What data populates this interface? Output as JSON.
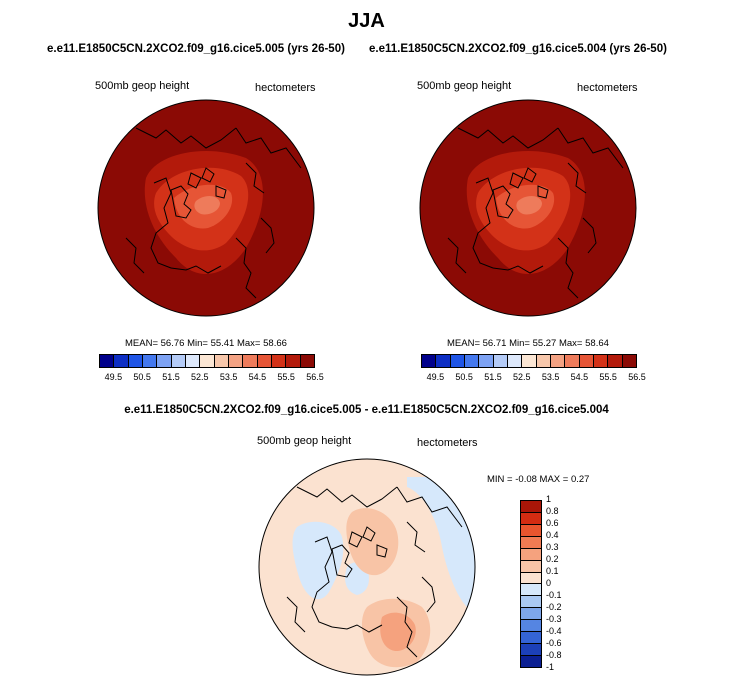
{
  "main_title": "JJA",
  "panels": [
    {
      "case_title": "e.e11.E1850C5CN.2XCO2.f09_g16.cice5.005 (yrs 26-50)",
      "variable": "500mb geop height",
      "units": "hectometers",
      "stats": {
        "mean_label": "MEAN=",
        "mean": "56.76",
        "min_label": "Min=",
        "min": "55.41",
        "max_label": "Max=",
        "max": "58.66"
      }
    },
    {
      "case_title": "e.e11.E1850C5CN.2XCO2.f09_g16.cice5.004 (yrs 26-50)",
      "variable": "500mb geop height",
      "units": "hectometers",
      "stats": {
        "mean_label": "MEAN=",
        "mean": "56.71",
        "min_label": "Min=",
        "min": "55.27",
        "max_label": "Max=",
        "max": "58.64"
      }
    }
  ],
  "abs_colorbar": {
    "colors": [
      "#00008b",
      "#0d2ec4",
      "#1f55e6",
      "#4478ee",
      "#7da2f3",
      "#b4cbf7",
      "#dde8fb",
      "#fbe6d4",
      "#f7c7ab",
      "#f3a283",
      "#ee7b5b",
      "#e65536",
      "#d33218",
      "#b31a0b",
      "#8b0a05"
    ],
    "tick_labels": [
      "49.5",
      "50.5",
      "51.5",
      "52.5",
      "53.5",
      "54.5",
      "55.5",
      "56.5"
    ]
  },
  "diff_panel": {
    "title": "e.e11.E1850C5CN.2XCO2.f09_g16.cice5.005 - e.e11.E1850C5CN.2XCO2.f09_g16.cice5.004",
    "variable": "500mb geop height",
    "units": "hectometers",
    "stats": {
      "min_label": "MIN =",
      "min": "-0.08",
      "max_label": "MAX =",
      "max": "0.27"
    }
  },
  "diff_colorbar": {
    "colors": [
      "#a81608",
      "#d32c12",
      "#e8552e",
      "#f07b53",
      "#f5a27e",
      "#f8c4a6",
      "#fbe2d0",
      "#d6e8fb",
      "#aac9f3",
      "#7ea6ea",
      "#5585e2",
      "#3464d6",
      "#1c40b8",
      "#0b1f92"
    ],
    "tick_labels": [
      "1",
      "0.8",
      "0.6",
      "0.4",
      "0.3",
      "0.2",
      "0.1",
      "0",
      "-0.1",
      "-0.2",
      "-0.3",
      "-0.4",
      "-0.6",
      "-0.8",
      "-1"
    ]
  }
}
